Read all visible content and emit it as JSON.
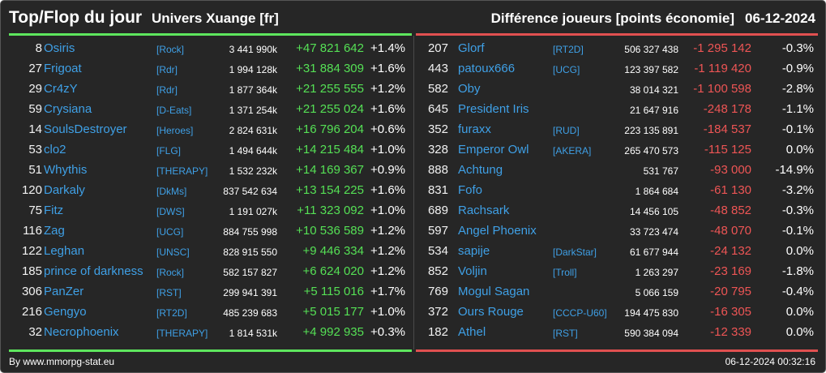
{
  "header": {
    "title": "Top/Flop du jour",
    "universe": "Univers Xuange [fr]",
    "metric": "Différence joueurs [points économie]",
    "date": "06-12-2024"
  },
  "colors": {
    "background": "#262626",
    "name_link": "#3fa0e6",
    "gain": "#55e055",
    "loss": "#ee5555",
    "top_line": "#5ee65e",
    "flop_line": "#e05050"
  },
  "top": [
    {
      "rank": "8",
      "name": "Osiris",
      "alliance": "[Rock]",
      "points": "3 441 990k",
      "diff": "+47 821 642",
      "pct": "+1.4%"
    },
    {
      "rank": "27",
      "name": "Frigoat",
      "alliance": "[Rdr]",
      "points": "1 994 128k",
      "diff": "+31 884 309",
      "pct": "+1.6%"
    },
    {
      "rank": "29",
      "name": "Cr4zY",
      "alliance": "[Rdr]",
      "points": "1 877 364k",
      "diff": "+21 255 555",
      "pct": "+1.2%"
    },
    {
      "rank": "59",
      "name": "Crysiana",
      "alliance": "[D-Eats]",
      "points": "1 371 254k",
      "diff": "+21 255 024",
      "pct": "+1.6%"
    },
    {
      "rank": "14",
      "name": "SoulsDestroyer",
      "alliance": "[Heroes]",
      "points": "2 824 631k",
      "diff": "+16 796 204",
      "pct": "+0.6%"
    },
    {
      "rank": "53",
      "name": "clo2",
      "alliance": "[FLG]",
      "points": "1 494 644k",
      "diff": "+14 215 484",
      "pct": "+1.0%"
    },
    {
      "rank": "51",
      "name": "Whythis",
      "alliance": "[THERAPY]",
      "points": "1 532 232k",
      "diff": "+14 169 367",
      "pct": "+0.9%"
    },
    {
      "rank": "120",
      "name": "Darkaly",
      "alliance": "[DkMs]",
      "points": "837 542 634",
      "diff": "+13 154 225",
      "pct": "+1.6%"
    },
    {
      "rank": "75",
      "name": "Fitz",
      "alliance": "[DWS]",
      "points": "1 191 027k",
      "diff": "+11 323 092",
      "pct": "+1.0%"
    },
    {
      "rank": "116",
      "name": "Zag",
      "alliance": "[UCG]",
      "points": "884 755 998",
      "diff": "+10 536 589",
      "pct": "+1.2%"
    },
    {
      "rank": "122",
      "name": "Leghan",
      "alliance": "[UNSC]",
      "points": "828 915 550",
      "diff": "+9 446 334",
      "pct": "+1.2%"
    },
    {
      "rank": "185",
      "name": "prince of darkness",
      "alliance": "[Rock]",
      "points": "582 157 827",
      "diff": "+6 624 020",
      "pct": "+1.2%"
    },
    {
      "rank": "306",
      "name": "PanZer",
      "alliance": "[RST]",
      "points": "299 941 391",
      "diff": "+5 115 016",
      "pct": "+1.7%"
    },
    {
      "rank": "216",
      "name": "Gengyo",
      "alliance": "[RT2D]",
      "points": "485 239 683",
      "diff": "+5 015 177",
      "pct": "+1.0%"
    },
    {
      "rank": "32",
      "name": "Necrophoenix",
      "alliance": "[THERAPY]",
      "points": "1 814 531k",
      "diff": "+4 992 935",
      "pct": "+0.3%"
    }
  ],
  "flop": [
    {
      "rank": "207",
      "name": "Glorf",
      "alliance": "[RT2D]",
      "points": "506 327 438",
      "diff": "-1 295 142",
      "pct": "-0.3%"
    },
    {
      "rank": "443",
      "name": "patoux666",
      "alliance": "[UCG]",
      "points": "123 397 582",
      "diff": "-1 119 420",
      "pct": "-0.9%"
    },
    {
      "rank": "582",
      "name": "Oby",
      "alliance": "",
      "points": "38 014 321",
      "diff": "-1 100 598",
      "pct": "-2.8%"
    },
    {
      "rank": "645",
      "name": "President Iris",
      "alliance": "",
      "points": "21 647 916",
      "diff": "-248 178",
      "pct": "-1.1%"
    },
    {
      "rank": "352",
      "name": "furaxx",
      "alliance": "[RUD]",
      "points": "223 135 891",
      "diff": "-184 537",
      "pct": "-0.1%"
    },
    {
      "rank": "328",
      "name": "Emperor Owl",
      "alliance": "[AKERA]",
      "points": "265 470 573",
      "diff": "-115 125",
      "pct": "0.0%"
    },
    {
      "rank": "888",
      "name": "Achtung",
      "alliance": "",
      "points": "531 767",
      "diff": "-93 000",
      "pct": "-14.9%"
    },
    {
      "rank": "831",
      "name": "Fofo",
      "alliance": "",
      "points": "1 864 684",
      "diff": "-61 130",
      "pct": "-3.2%"
    },
    {
      "rank": "689",
      "name": "Rachsark",
      "alliance": "",
      "points": "14 456 105",
      "diff": "-48 852",
      "pct": "-0.3%"
    },
    {
      "rank": "597",
      "name": "Angel Phoenix",
      "alliance": "",
      "points": "33 723 474",
      "diff": "-48 070",
      "pct": "-0.1%"
    },
    {
      "rank": "534",
      "name": "sapije",
      "alliance": "[DarkStar]",
      "points": "61 677 944",
      "diff": "-24 132",
      "pct": "0.0%"
    },
    {
      "rank": "852",
      "name": "Voljin",
      "alliance": "[Troll]",
      "points": "1 263 297",
      "diff": "-23 169",
      "pct": "-1.8%"
    },
    {
      "rank": "769",
      "name": "Mogul Sagan",
      "alliance": "",
      "points": "5 066 159",
      "diff": "-20 795",
      "pct": "-0.4%"
    },
    {
      "rank": "372",
      "name": "Ours Rouge",
      "alliance": "[CCCP-U60]",
      "points": "194 475 830",
      "diff": "-16 305",
      "pct": "0.0%"
    },
    {
      "rank": "182",
      "name": "Athel",
      "alliance": "[RST]",
      "points": "590 384 094",
      "diff": "-12 339",
      "pct": "0.0%"
    }
  ],
  "footer": {
    "credit": "By www.mmorpg-stat.eu",
    "timestamp": "06-12-2024 00:32:16"
  }
}
